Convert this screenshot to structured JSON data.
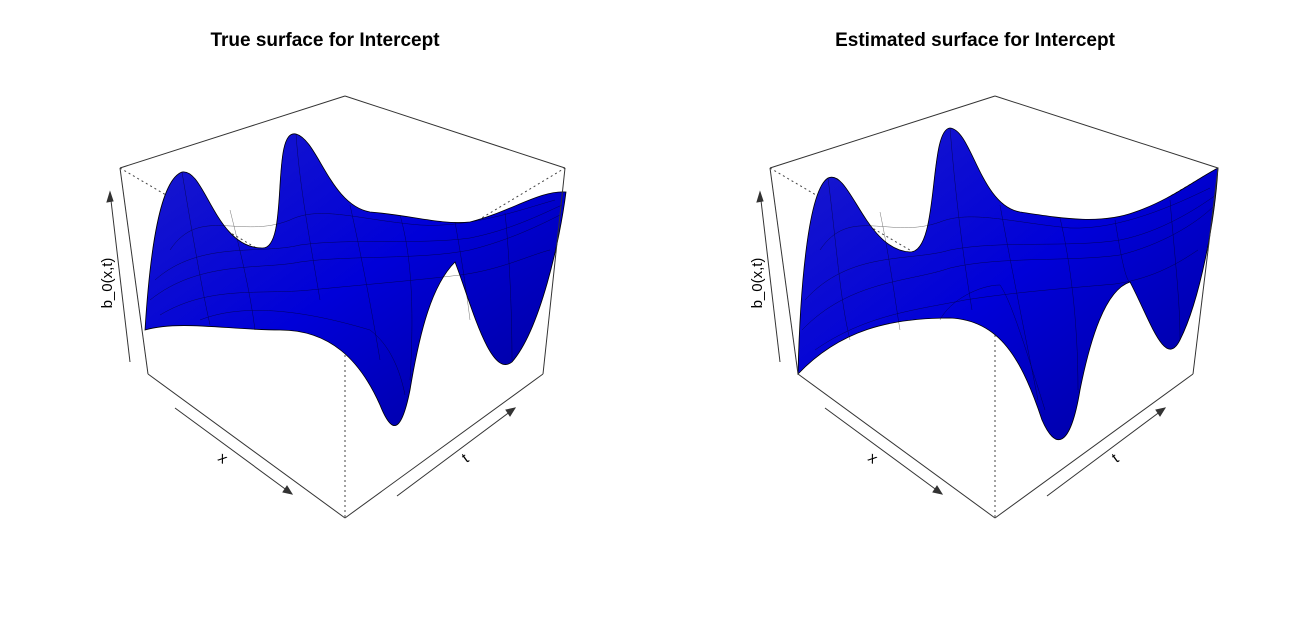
{
  "chart_data": [
    {
      "type": "surface",
      "title": "True surface for Intercept",
      "xlabel": "x",
      "ylabel": "t",
      "zlabel": "b_0(x,t)",
      "surface_color": "#0000ff",
      "mesh_color": "#000000",
      "box": true,
      "ticks": false
    },
    {
      "type": "surface",
      "title": "Estimated surface for Intercept",
      "xlabel": "x",
      "ylabel": "t",
      "zlabel": "b_0(x,t)",
      "surface_color": "#0000ff",
      "mesh_color": "#000000",
      "box": true,
      "ticks": false
    }
  ]
}
